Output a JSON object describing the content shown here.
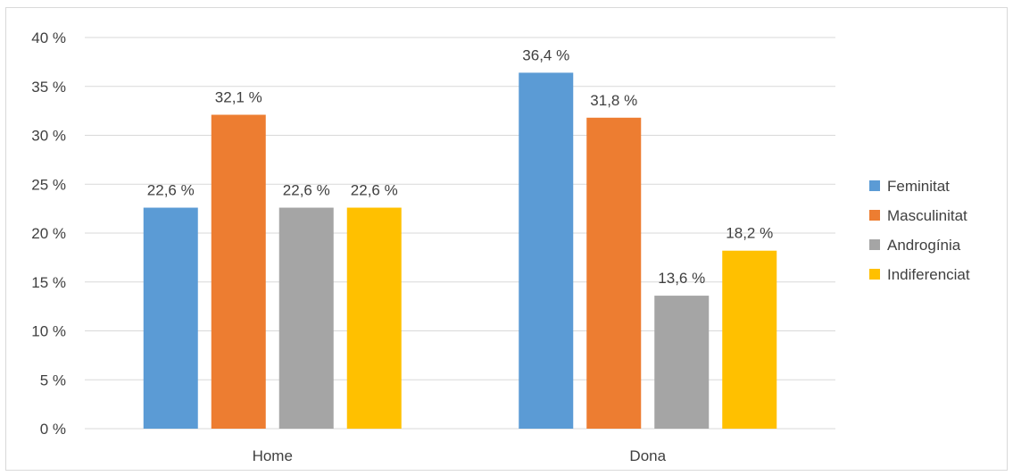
{
  "chart_data": {
    "type": "bar",
    "categories": [
      "Home",
      "Dona"
    ],
    "series": [
      {
        "name": "Feminitat",
        "values": [
          22.6,
          36.4
        ],
        "labels": [
          "22,6 %",
          "36,4 %"
        ],
        "color": "#5b9bd5"
      },
      {
        "name": "Masculinitat",
        "values": [
          32.1,
          31.8
        ],
        "labels": [
          "32,1 %",
          "31,8 %"
        ],
        "color": "#ed7d31"
      },
      {
        "name": "Androgínia",
        "values": [
          22.6,
          13.6
        ],
        "labels": [
          "22,6 %",
          "13,6 %"
        ],
        "color": "#a5a5a5"
      },
      {
        "name": "Indiferenciat",
        "values": [
          22.6,
          18.2
        ],
        "labels": [
          "22,6 %",
          "18,2 %"
        ],
        "color": "#ffc000"
      }
    ],
    "title": "",
    "xlabel": "",
    "ylabel": "",
    "ylim": [
      0,
      40
    ],
    "yticks": [
      0,
      5,
      10,
      15,
      20,
      25,
      30,
      35,
      40
    ],
    "ytick_labels": [
      "0 %",
      "5 %",
      "10 %",
      "15 %",
      "20 %",
      "25 %",
      "30 %",
      "35 %",
      "40 %"
    ],
    "grid": true,
    "legend_position": "right",
    "gridline_color": "#d9d9d9",
    "text_color": "#404040"
  }
}
